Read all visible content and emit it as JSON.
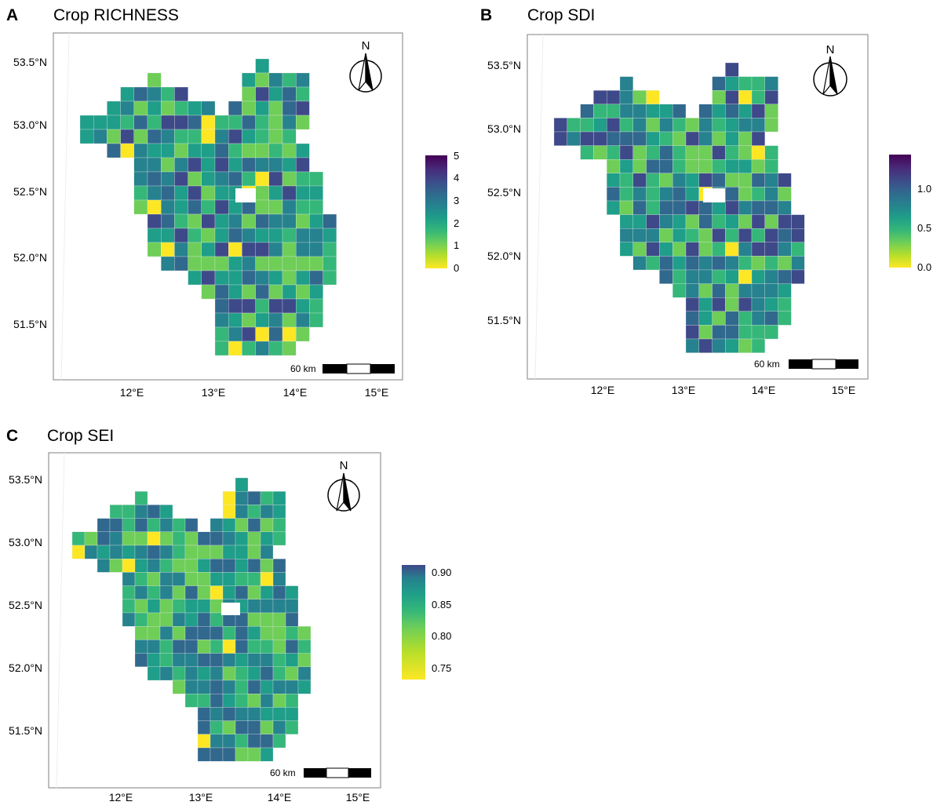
{
  "panels": [
    {
      "letter": "A",
      "title": "Crop RICHNESS",
      "colorbar": {
        "ticks": [
          "5",
          "4",
          "3",
          "2",
          "1",
          "0"
        ],
        "min": 0,
        "max": 5
      },
      "y_ticks": [
        "53.5°N",
        "53.0°N",
        "52.5°N",
        "52.0°N",
        "51.5°N"
      ],
      "x_ticks": [
        "12°E",
        "13°E",
        "14°E",
        "15°E"
      ],
      "scale_label": "60 km",
      "north_label": "N"
    },
    {
      "letter": "B",
      "title": "Crop SDI",
      "colorbar": {
        "ticks": [
          "1.0",
          "0.5",
          "0.0"
        ],
        "min": 0,
        "max": 1.3
      },
      "y_ticks": [
        "53.5°N",
        "53.0°N",
        "52.5°N",
        "52.0°N",
        "51.5°N"
      ],
      "x_ticks": [
        "12°E",
        "13°E",
        "14°E",
        "15°E"
      ],
      "scale_label": "60 km",
      "north_label": "N"
    },
    {
      "letter": "C",
      "title": "Crop SEI",
      "colorbar": {
        "ticks": [
          "0.90",
          "0.85",
          "0.80",
          "0.75"
        ],
        "min": 0.73,
        "max": 0.91
      },
      "y_ticks": [
        "53.5°N",
        "53.0°N",
        "52.5°N",
        "52.0°N",
        "51.5°N"
      ],
      "x_ticks": [
        "12°E",
        "13°E",
        "14°E",
        "15°E"
      ],
      "scale_label": "60 km",
      "north_label": "N"
    }
  ],
  "colors": {
    "viridis": [
      "#fde725",
      "#b5de2b",
      "#6ece58",
      "#35b779",
      "#1f9e89",
      "#26828e",
      "#31688e",
      "#3e4989",
      "#482878",
      "#440154"
    ],
    "panel_border": "#7f7f7f",
    "cell_outline": "#e8e8e8"
  }
}
